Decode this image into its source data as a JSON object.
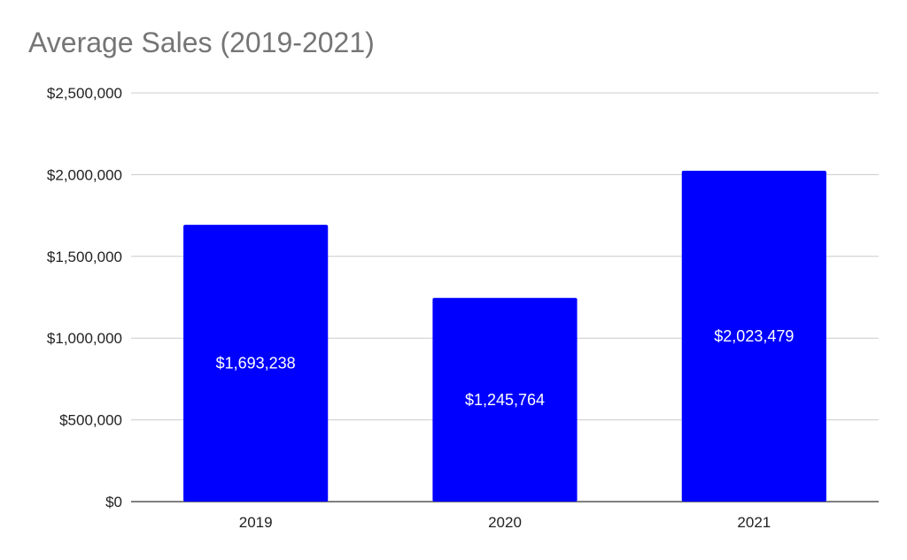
{
  "chart_data": {
    "type": "bar",
    "title": "Average Sales (2019-2021)",
    "categories": [
      "2019",
      "2020",
      "2021"
    ],
    "values": [
      1693238,
      1245764,
      2023479
    ],
    "data_labels": [
      "$1,693,238",
      "$1,245,764",
      "$2,023,479"
    ],
    "ylim": [
      0,
      2500000
    ],
    "y_ticks": [
      0,
      500000,
      1000000,
      1500000,
      2000000,
      2500000
    ],
    "y_tick_labels": [
      "$0",
      "$500,000",
      "$1,000,000",
      "$1,500,000",
      "$2,000,000",
      "$2,500,000"
    ],
    "xlabel": "",
    "ylabel": "",
    "grid": true,
    "legend": "none",
    "bar_color": "#0000ff",
    "label_color": "#ffffff"
  }
}
